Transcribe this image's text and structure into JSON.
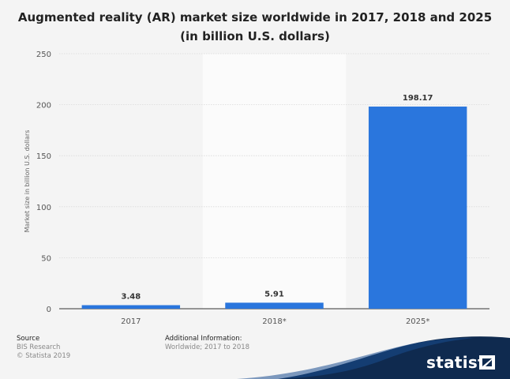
{
  "chart_data": {
    "type": "bar",
    "title": "Augmented reality (AR) market size worldwide in 2017, 2018 and 2025 (in billion U.S. dollars)",
    "xlabel": "",
    "ylabel": "Market size in billion U.S. dollars",
    "categories": [
      "2017",
      "2018*",
      "2025*"
    ],
    "values": [
      3.48,
      5.91,
      198.17
    ],
    "value_labels": [
      "3.48",
      "5.91",
      "198.17"
    ],
    "ylim": [
      0,
      250
    ],
    "yticks": [
      0,
      50,
      100,
      150,
      200,
      250
    ],
    "ytick_labels": [
      "0",
      "50",
      "100",
      "150",
      "200",
      "250"
    ],
    "grid": true,
    "bar_color": "#2a76dd"
  },
  "footer": {
    "source_heading": "Source",
    "source_lines": [
      "BIS Research",
      "© Statista 2019"
    ],
    "info_heading": "Additional Information:",
    "info_lines": [
      "Worldwide; 2017 to 2018"
    ]
  },
  "brand": {
    "name": "statista",
    "color": "#0f2a4f"
  }
}
